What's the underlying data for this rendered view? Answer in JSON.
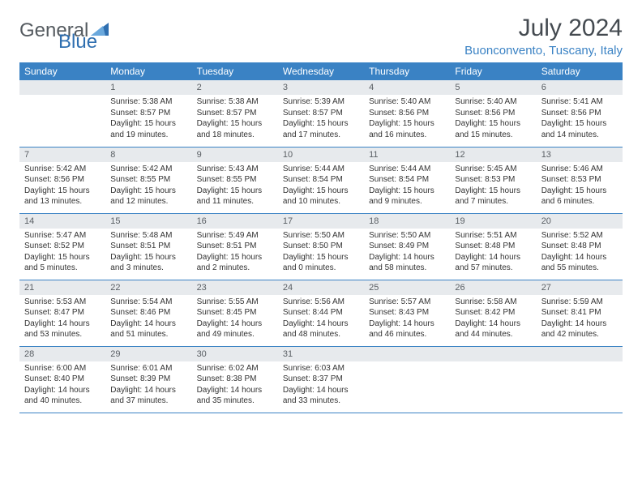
{
  "brand": {
    "name1": "General",
    "name2": "Blue"
  },
  "title": "July 2024",
  "location": "Buonconvento, Tuscany, Italy",
  "colors": {
    "header_bg": "#3a82c4",
    "header_fg": "#ffffff",
    "daybar_bg": "#e7eaed",
    "daybar_fg": "#5a5f64",
    "rule": "#3a82c4",
    "logo_gray": "#555b60",
    "logo_blue": "#2f6fb0"
  },
  "weekdays": [
    "Sunday",
    "Monday",
    "Tuesday",
    "Wednesday",
    "Thursday",
    "Friday",
    "Saturday"
  ],
  "weeks": [
    [
      null,
      {
        "n": "1",
        "sr": "5:38 AM",
        "ss": "8:57 PM",
        "dl": "15 hours and 19 minutes."
      },
      {
        "n": "2",
        "sr": "5:38 AM",
        "ss": "8:57 PM",
        "dl": "15 hours and 18 minutes."
      },
      {
        "n": "3",
        "sr": "5:39 AM",
        "ss": "8:57 PM",
        "dl": "15 hours and 17 minutes."
      },
      {
        "n": "4",
        "sr": "5:40 AM",
        "ss": "8:56 PM",
        "dl": "15 hours and 16 minutes."
      },
      {
        "n": "5",
        "sr": "5:40 AM",
        "ss": "8:56 PM",
        "dl": "15 hours and 15 minutes."
      },
      {
        "n": "6",
        "sr": "5:41 AM",
        "ss": "8:56 PM",
        "dl": "15 hours and 14 minutes."
      }
    ],
    [
      {
        "n": "7",
        "sr": "5:42 AM",
        "ss": "8:56 PM",
        "dl": "15 hours and 13 minutes."
      },
      {
        "n": "8",
        "sr": "5:42 AM",
        "ss": "8:55 PM",
        "dl": "15 hours and 12 minutes."
      },
      {
        "n": "9",
        "sr": "5:43 AM",
        "ss": "8:55 PM",
        "dl": "15 hours and 11 minutes."
      },
      {
        "n": "10",
        "sr": "5:44 AM",
        "ss": "8:54 PM",
        "dl": "15 hours and 10 minutes."
      },
      {
        "n": "11",
        "sr": "5:44 AM",
        "ss": "8:54 PM",
        "dl": "15 hours and 9 minutes."
      },
      {
        "n": "12",
        "sr": "5:45 AM",
        "ss": "8:53 PM",
        "dl": "15 hours and 7 minutes."
      },
      {
        "n": "13",
        "sr": "5:46 AM",
        "ss": "8:53 PM",
        "dl": "15 hours and 6 minutes."
      }
    ],
    [
      {
        "n": "14",
        "sr": "5:47 AM",
        "ss": "8:52 PM",
        "dl": "15 hours and 5 minutes."
      },
      {
        "n": "15",
        "sr": "5:48 AM",
        "ss": "8:51 PM",
        "dl": "15 hours and 3 minutes."
      },
      {
        "n": "16",
        "sr": "5:49 AM",
        "ss": "8:51 PM",
        "dl": "15 hours and 2 minutes."
      },
      {
        "n": "17",
        "sr": "5:50 AM",
        "ss": "8:50 PM",
        "dl": "15 hours and 0 minutes."
      },
      {
        "n": "18",
        "sr": "5:50 AM",
        "ss": "8:49 PM",
        "dl": "14 hours and 58 minutes."
      },
      {
        "n": "19",
        "sr": "5:51 AM",
        "ss": "8:48 PM",
        "dl": "14 hours and 57 minutes."
      },
      {
        "n": "20",
        "sr": "5:52 AM",
        "ss": "8:48 PM",
        "dl": "14 hours and 55 minutes."
      }
    ],
    [
      {
        "n": "21",
        "sr": "5:53 AM",
        "ss": "8:47 PM",
        "dl": "14 hours and 53 minutes."
      },
      {
        "n": "22",
        "sr": "5:54 AM",
        "ss": "8:46 PM",
        "dl": "14 hours and 51 minutes."
      },
      {
        "n": "23",
        "sr": "5:55 AM",
        "ss": "8:45 PM",
        "dl": "14 hours and 49 minutes."
      },
      {
        "n": "24",
        "sr": "5:56 AM",
        "ss": "8:44 PM",
        "dl": "14 hours and 48 minutes."
      },
      {
        "n": "25",
        "sr": "5:57 AM",
        "ss": "8:43 PM",
        "dl": "14 hours and 46 minutes."
      },
      {
        "n": "26",
        "sr": "5:58 AM",
        "ss": "8:42 PM",
        "dl": "14 hours and 44 minutes."
      },
      {
        "n": "27",
        "sr": "5:59 AM",
        "ss": "8:41 PM",
        "dl": "14 hours and 42 minutes."
      }
    ],
    [
      {
        "n": "28",
        "sr": "6:00 AM",
        "ss": "8:40 PM",
        "dl": "14 hours and 40 minutes."
      },
      {
        "n": "29",
        "sr": "6:01 AM",
        "ss": "8:39 PM",
        "dl": "14 hours and 37 minutes."
      },
      {
        "n": "30",
        "sr": "6:02 AM",
        "ss": "8:38 PM",
        "dl": "14 hours and 35 minutes."
      },
      {
        "n": "31",
        "sr": "6:03 AM",
        "ss": "8:37 PM",
        "dl": "14 hours and 33 minutes."
      },
      null,
      null,
      null
    ]
  ],
  "labels": {
    "sunrise": "Sunrise:",
    "sunset": "Sunset:",
    "daylight": "Daylight:"
  }
}
